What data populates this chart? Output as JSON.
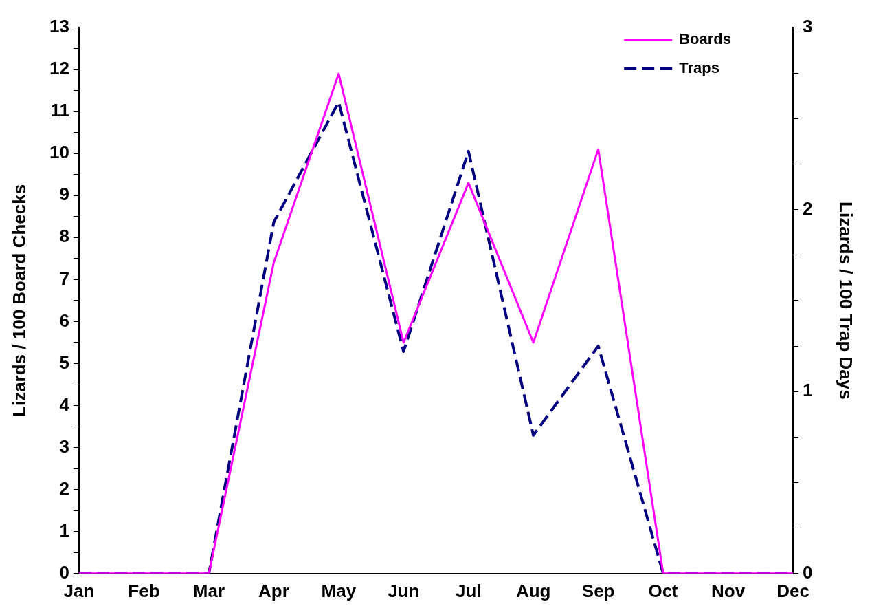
{
  "chart_data": {
    "type": "line",
    "ylabel": "Lizards / 100 Board Checks",
    "y2label": "Lizards / 100 Trap Days",
    "categories": [
      "Jan",
      "Feb",
      "Mar",
      "Apr",
      "May",
      "Jun",
      "Jul",
      "Aug",
      "Sep",
      "Oct",
      "Nov",
      "Dec"
    ],
    "series": [
      {
        "name": "Boards",
        "color": "#ff00ff",
        "line_style": "solid",
        "values": [
          0,
          0,
          0,
          7.4,
          11.9,
          5.5,
          9.3,
          5.5,
          10.1,
          0,
          0,
          0
        ]
      },
      {
        "name": "Traps",
        "color": "#000080",
        "line_style": "dashed",
        "axis": "y2",
        "values": [
          0,
          0,
          0,
          1.93,
          2.59,
          1.22,
          2.32,
          0.76,
          1.25,
          0,
          0,
          0
        ]
      }
    ],
    "ylim": [
      0,
      13
    ],
    "yticks": [
      0,
      {
        "value": 0.5,
        "label": null
      },
      1,
      {
        "value": 1.5,
        "label": null
      },
      2,
      {
        "value": 2.5,
        "label": null
      },
      3,
      {
        "value": 3.5,
        "label": null
      },
      4,
      {
        "value": 4.5,
        "label": null
      },
      5,
      {
        "value": 5.5,
        "label": null
      },
      6,
      {
        "value": 6.5,
        "label": null
      },
      7,
      {
        "value": 7.5,
        "label": null
      },
      8,
      {
        "value": 8.5,
        "label": null
      },
      9,
      {
        "value": 9.5,
        "label": null
      },
      10,
      {
        "value": 10.5,
        "label": null
      },
      11,
      {
        "value": 11.5,
        "label": null
      },
      12,
      {
        "value": 12.5,
        "label": null
      },
      13
    ],
    "y2lim": [
      0,
      3
    ],
    "y2ticks": [
      0,
      {
        "value": 0.25,
        "label": null
      },
      {
        "value": 0.5,
        "label": null
      },
      {
        "value": 0.75,
        "label": null
      },
      1,
      {
        "value": 1.25,
        "label": null
      },
      {
        "value": 1.5,
        "label": null
      },
      {
        "value": 1.75,
        "label": null
      },
      2,
      {
        "value": 2.25,
        "label": null
      },
      {
        "value": 2.5,
        "label": null
      },
      {
        "value": 2.75,
        "label": null
      },
      3
    ],
    "grid": false,
    "legend": "top right",
    "marker": "none"
  }
}
